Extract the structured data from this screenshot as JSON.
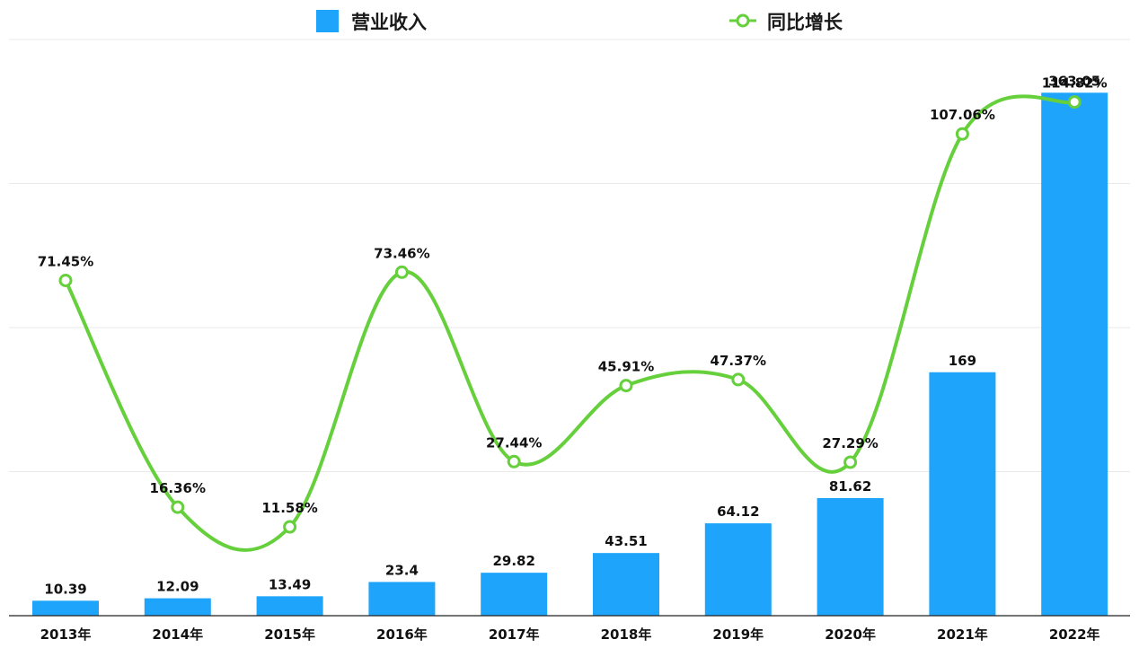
{
  "chart_data": {
    "type": "bar",
    "title": "",
    "xlabel": "",
    "ylabel": "",
    "legend_position": "top",
    "grid": true,
    "categories": [
      "2013年",
      "2014年",
      "2015年",
      "2016年",
      "2017年",
      "2018年",
      "2019年",
      "2020年",
      "2021年",
      "2022年"
    ],
    "series": [
      {
        "name": "营业收入",
        "type": "bar",
        "color": "#1ea4fa",
        "axis": "left",
        "values": [
          10.39,
          12.09,
          13.49,
          23.4,
          29.82,
          43.51,
          64.12,
          81.62,
          169,
          363.05
        ],
        "labels": [
          "10.39",
          "12.09",
          "13.49",
          "23.4",
          "29.82",
          "43.51",
          "64.12",
          "81.62",
          "169",
          "363.05"
        ]
      },
      {
        "name": "同比增长",
        "type": "line",
        "color": "#66d03c",
        "axis": "right",
        "values": [
          71.45,
          16.36,
          11.58,
          73.46,
          27.44,
          45.91,
          47.37,
          27.29,
          107.06,
          114.82
        ],
        "labels": [
          "71.45%",
          "16.36%",
          "11.58%",
          "73.46%",
          "27.44%",
          "45.91%",
          "47.37%",
          "27.29%",
          "107.06%",
          "114.82%"
        ]
      }
    ],
    "ylim_left": [
      0,
      400
    ],
    "ylim_right": [
      -10,
      130
    ]
  }
}
